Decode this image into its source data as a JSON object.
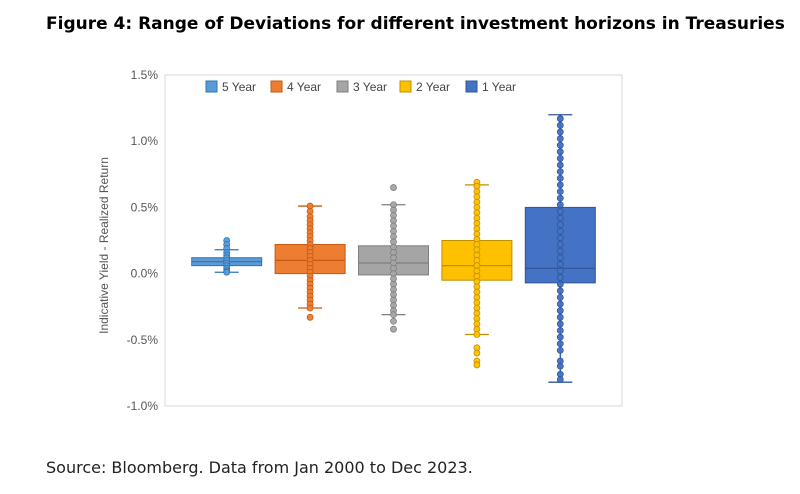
{
  "figure": {
    "title": "Figure 4: Range of Deviations for different investment horizons in Treasuries",
    "source": "Source: Bloomberg. Data from Jan 2000 to Dec 2023."
  },
  "chart_data": {
    "type": "box",
    "title": "Figure 4: Range of Deviations for different investment horizons in Treasuries",
    "ylabel": "Indicative Yield - Realized Return",
    "xlabel": "",
    "ylim": [
      -1.0,
      1.5
    ],
    "yticks": [
      1.5,
      1.0,
      0.5,
      0.0,
      -0.5,
      -1.0
    ],
    "ytick_labels": [
      "1.5%",
      "1.0%",
      "0.5%",
      "0.0%",
      "-0.5%",
      "-1.0%"
    ],
    "legend_position": "top",
    "series": [
      {
        "name": "5 Year",
        "color": "#5b9bd5",
        "dark": "#2e75b6",
        "min": 0.01,
        "q1": 0.06,
        "median": 0.09,
        "q3": 0.12,
        "max": 0.18,
        "points": [
          0.25,
          0.22,
          0.19,
          0.16,
          0.14,
          0.12,
          0.1,
          0.08,
          0.06,
          0.04,
          0.02,
          0.01
        ]
      },
      {
        "name": "4 Year",
        "color": "#ed7d31",
        "dark": "#c55a11",
        "min": -0.26,
        "q1": 0.0,
        "median": 0.1,
        "q3": 0.22,
        "max": 0.51,
        "points": [
          0.51,
          0.47,
          0.43,
          0.4,
          0.37,
          0.34,
          0.31,
          0.28,
          0.25,
          0.22,
          0.19,
          0.16,
          0.13,
          0.1,
          0.07,
          0.04,
          0.01,
          -0.02,
          -0.05,
          -0.08,
          -0.11,
          -0.14,
          -0.17,
          -0.2,
          -0.23,
          -0.26,
          -0.33
        ]
      },
      {
        "name": "3 Year",
        "color": "#a5a5a5",
        "dark": "#7f7f7f",
        "min": -0.31,
        "q1": -0.01,
        "median": 0.08,
        "q3": 0.21,
        "max": 0.52,
        "points": [
          0.65,
          0.52,
          0.48,
          0.44,
          0.4,
          0.36,
          0.32,
          0.28,
          0.24,
          0.2,
          0.16,
          0.12,
          0.08,
          0.04,
          0.0,
          -0.04,
          -0.08,
          -0.12,
          -0.16,
          -0.2,
          -0.24,
          -0.28,
          -0.31,
          -0.36,
          -0.42
        ]
      },
      {
        "name": "2 Year",
        "color": "#ffc000",
        "dark": "#bf9000",
        "min": -0.46,
        "q1": -0.05,
        "median": 0.06,
        "q3": 0.25,
        "max": 0.67,
        "points": [
          0.69,
          0.66,
          0.62,
          0.58,
          0.54,
          0.5,
          0.46,
          0.42,
          0.38,
          0.34,
          0.3,
          0.26,
          0.22,
          0.18,
          0.14,
          0.1,
          0.06,
          0.02,
          -0.02,
          -0.06,
          -0.1,
          -0.14,
          -0.18,
          -0.22,
          -0.26,
          -0.3,
          -0.34,
          -0.38,
          -0.42,
          -0.46,
          -0.56,
          -0.6,
          -0.66,
          -0.69
        ]
      },
      {
        "name": "1 Year",
        "color": "#4472c4",
        "dark": "#2f5597",
        "min": -0.82,
        "q1": -0.07,
        "median": 0.04,
        "q3": 0.5,
        "max": 1.2,
        "points": [
          1.17,
          1.12,
          1.07,
          1.02,
          0.97,
          0.92,
          0.87,
          0.82,
          0.77,
          0.72,
          0.67,
          0.62,
          0.57,
          0.52,
          0.47,
          0.42,
          0.37,
          0.32,
          0.27,
          0.22,
          0.17,
          0.12,
          0.07,
          0.02,
          -0.03,
          -0.08,
          -0.13,
          -0.18,
          -0.23,
          -0.28,
          -0.33,
          -0.38,
          -0.43,
          -0.48,
          -0.53,
          -0.58,
          -0.66,
          -0.7,
          -0.76,
          -0.8
        ]
      }
    ]
  }
}
